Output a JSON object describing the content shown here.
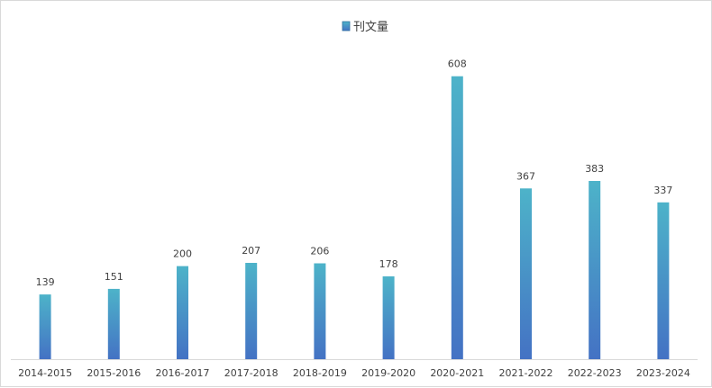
{
  "chart_data": {
    "type": "bar",
    "categories": [
      "2014-2015",
      "2015-2016",
      "2016-2017",
      "2017-2018",
      "2018-2019",
      "2019-2020",
      "2020-2021",
      "2021-2022",
      "2022-2023",
      "2023-2024"
    ],
    "series": [
      {
        "name": "刊文量",
        "values": [
          139,
          151,
          200,
          207,
          206,
          178,
          608,
          367,
          383,
          337
        ]
      }
    ],
    "title": "",
    "xlabel": "",
    "ylabel": "",
    "ylim": [
      0,
      650
    ],
    "grid": false,
    "legend_position": "top-center",
    "colors": {
      "bar_top": "#4db3c9",
      "bar_bottom": "#4472c4",
      "axis": "#d9d9d9",
      "text": "#404040"
    }
  }
}
